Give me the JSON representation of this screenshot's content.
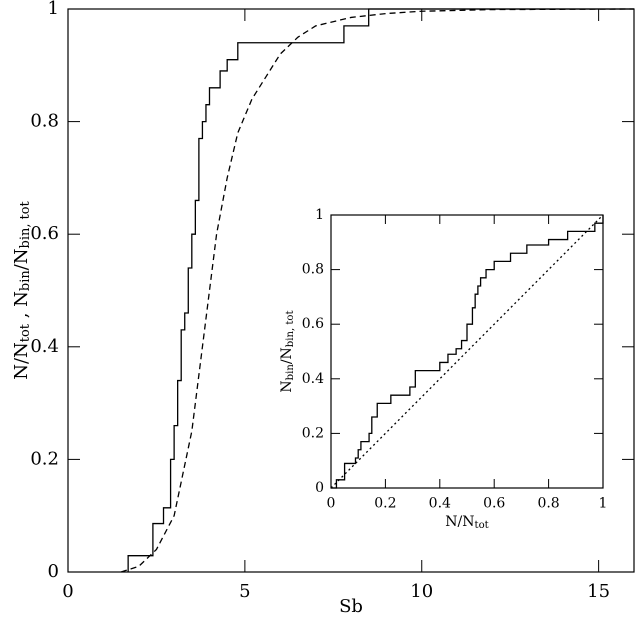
{
  "chart_data": [
    {
      "type": "line",
      "xlabel": "Sb",
      "ylabel": [
        {
          "text": "N/N"
        },
        {
          "sub": "tot"
        },
        {
          "text": "  ,  N"
        },
        {
          "sub": "bin"
        },
        {
          "text": "/N"
        },
        {
          "sub": "bin, tot"
        }
      ],
      "xlim": [
        0,
        16
      ],
      "ylim": [
        0,
        1
      ],
      "xticks": [
        0,
        5,
        10,
        15
      ],
      "yticks": [
        0,
        0.2,
        0.4,
        0.6,
        0.8,
        1
      ],
      "series": [
        {
          "color": "#000000",
          "style": "solid",
          "step": true,
          "x": [
            1.7,
            1.7,
            2.4,
            2.7,
            2.9,
            3.0,
            3.1,
            3.2,
            3.3,
            3.4,
            3.5,
            3.6,
            3.7,
            3.8,
            3.9,
            4.0,
            4.3,
            4.5,
            4.8,
            7.8,
            8.5,
            16
          ],
          "values": [
            0,
            0.029,
            0.086,
            0.114,
            0.2,
            0.26,
            0.34,
            0.43,
            0.46,
            0.54,
            0.6,
            0.66,
            0.77,
            0.8,
            0.83,
            0.86,
            0.89,
            0.91,
            0.94,
            0.97,
            1,
            1
          ]
        },
        {
          "color": "#000000",
          "style": "dashed",
          "step": false,
          "x": [
            1.5,
            2,
            2.5,
            3,
            3.5,
            3.8,
            4,
            4.2,
            4.5,
            4.8,
            5.2,
            5.6,
            6,
            6.5,
            7,
            8,
            9,
            10,
            12,
            16
          ],
          "values": [
            0,
            0.01,
            0.04,
            0.1,
            0.25,
            0.4,
            0.5,
            0.6,
            0.7,
            0.78,
            0.84,
            0.88,
            0.92,
            0.95,
            0.97,
            0.985,
            0.992,
            0.996,
            0.999,
            1
          ]
        }
      ]
    },
    {
      "type": "line",
      "xlabel": [
        {
          "text": "N/N"
        },
        {
          "sub": "tot"
        }
      ],
      "ylabel": [
        {
          "text": "N"
        },
        {
          "sub": "bin"
        },
        {
          "text": "/N"
        },
        {
          "sub": "bin, tot"
        }
      ],
      "xlim": [
        0,
        1
      ],
      "ylim": [
        0,
        1
      ],
      "xticks": [
        0,
        0.2,
        0.4,
        0.6,
        0.8,
        1
      ],
      "yticks": [
        0,
        0.2,
        0.4,
        0.6,
        0.8,
        1
      ],
      "series": [
        {
          "color": "#000000",
          "style": "solid",
          "step": true,
          "x": [
            0,
            0.02,
            0.05,
            0.09,
            0.1,
            0.11,
            0.14,
            0.15,
            0.17,
            0.22,
            0.29,
            0.31,
            0.4,
            0.43,
            0.46,
            0.48,
            0.5,
            0.52,
            0.53,
            0.54,
            0.55,
            0.57,
            0.6,
            0.66,
            0.72,
            0.8,
            0.87,
            0.97,
            1
          ],
          "values": [
            0,
            0.03,
            0.09,
            0.11,
            0.14,
            0.17,
            0.2,
            0.26,
            0.31,
            0.34,
            0.37,
            0.43,
            0.46,
            0.49,
            0.51,
            0.54,
            0.6,
            0.66,
            0.71,
            0.74,
            0.77,
            0.8,
            0.83,
            0.86,
            0.89,
            0.91,
            0.94,
            0.97,
            1
          ]
        },
        {
          "color": "#000000",
          "style": "dotted",
          "step": false,
          "x": [
            0,
            1
          ],
          "values": [
            0,
            1
          ]
        }
      ]
    }
  ]
}
